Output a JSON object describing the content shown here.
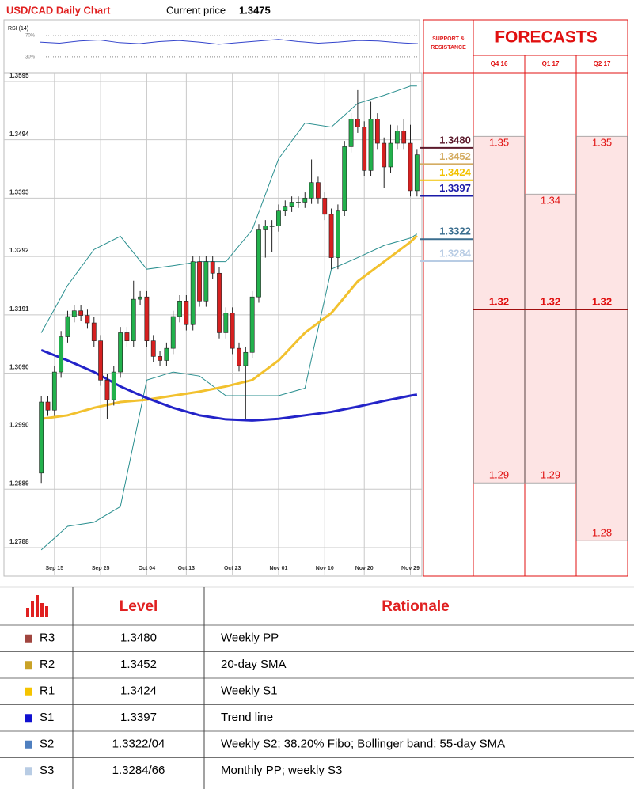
{
  "chart_data": {
    "type": "candlestick",
    "title": "USD/CAD Daily Chart",
    "price_label": "Current price",
    "price": 1.3475,
    "categories": [
      null,
      null,
      "Sep 15",
      null,
      null,
      null,
      null,
      null,
      null,
      "Sep 25",
      null,
      null,
      null,
      null,
      null,
      null,
      "Oct 04",
      null,
      null,
      null,
      null,
      null,
      "Oct 13",
      null,
      null,
      null,
      null,
      null,
      null,
      "Oct 23",
      null,
      null,
      null,
      null,
      null,
      null,
      "Nov 01",
      null,
      null,
      null,
      null,
      null,
      null,
      "Nov 10",
      null,
      null,
      null,
      null,
      null,
      "Nov 20",
      null,
      null,
      null,
      null,
      null,
      null,
      "Nov 29",
      null
    ],
    "open": [
      1.2917,
      1.304,
      1.3026,
      1.3092,
      1.3153,
      1.3188,
      1.3198,
      1.319,
      1.3177,
      1.3146,
      1.3078,
      1.3044,
      1.3092,
      1.316,
      1.3146,
      1.3218,
      1.3222,
      1.3146,
      1.3119,
      1.3112,
      1.3133,
      1.3188,
      1.3215,
      1.3174,
      1.3283,
      1.3215,
      1.3283,
      1.3263,
      1.316,
      1.3194,
      1.3133,
      1.3103,
      1.3126,
      1.3222,
      1.3338,
      1.3345,
      1.3345,
      1.3372,
      1.3379,
      1.3386,
      1.3386,
      1.3393,
      1.342,
      1.3393,
      1.3365,
      1.329,
      1.3372,
      1.3482,
      1.353,
      1.3516,
      1.3441,
      1.353,
      1.3488,
      1.3447,
      1.3488,
      1.3509,
      1.3488,
      1.3406
    ],
    "high": [
      1.305,
      1.305,
      1.3102,
      1.3163,
      1.3198,
      1.3208,
      1.3208,
      1.32,
      1.3187,
      1.3156,
      1.3088,
      1.3102,
      1.317,
      1.317,
      1.325,
      1.3232,
      1.3232,
      1.3156,
      1.3129,
      1.3143,
      1.3198,
      1.3225,
      1.3225,
      1.3293,
      1.3293,
      1.3293,
      1.3293,
      1.3273,
      1.3204,
      1.3204,
      1.3143,
      1.3136,
      1.3232,
      1.3348,
      1.3355,
      1.3355,
      1.3382,
      1.3389,
      1.3396,
      1.3396,
      1.3403,
      1.346,
      1.343,
      1.3403,
      1.3375,
      1.3382,
      1.3492,
      1.354,
      1.358,
      1.3526,
      1.356,
      1.354,
      1.3498,
      1.352,
      1.3519,
      1.353,
      1.352,
      1.3478
    ],
    "low": [
      1.29,
      1.3016,
      1.3016,
      1.3082,
      1.3143,
      1.3178,
      1.318,
      1.3167,
      1.3136,
      1.3068,
      1.301,
      1.3034,
      1.3082,
      1.3136,
      1.3136,
      1.3208,
      1.3136,
      1.3109,
      1.3102,
      1.3102,
      1.3123,
      1.3178,
      1.3164,
      1.3164,
      1.3205,
      1.3205,
      1.3253,
      1.315,
      1.315,
      1.3123,
      1.3093,
      1.301,
      1.3116,
      1.3212,
      1.329,
      1.33,
      1.3335,
      1.3362,
      1.3369,
      1.3376,
      1.3376,
      1.3383,
      1.3383,
      1.3355,
      1.327,
      1.327,
      1.3362,
      1.3472,
      1.3506,
      1.3431,
      1.3431,
      1.3478,
      1.341,
      1.3437,
      1.3478,
      1.3478,
      1.3396,
      1.3396
    ],
    "close": [
      1.304,
      1.3026,
      1.3092,
      1.3153,
      1.3188,
      1.3198,
      1.319,
      1.3177,
      1.3146,
      1.3078,
      1.3044,
      1.3092,
      1.316,
      1.3146,
      1.3218,
      1.3222,
      1.3146,
      1.3119,
      1.3112,
      1.3133,
      1.3188,
      1.3215,
      1.3174,
      1.3283,
      1.3215,
      1.3283,
      1.3263,
      1.316,
      1.3194,
      1.3133,
      1.3103,
      1.3126,
      1.3222,
      1.3338,
      1.3345,
      1.3345,
      1.3372,
      1.3379,
      1.3386,
      1.3386,
      1.3393,
      1.342,
      1.3393,
      1.3365,
      1.329,
      1.3372,
      1.3482,
      1.353,
      1.3516,
      1.3441,
      1.353,
      1.3488,
      1.3447,
      1.3488,
      1.3509,
      1.3488,
      1.3406,
      1.3468
    ],
    "up_color": "#22b14c",
    "down_color": "#d62020",
    "overlays": [
      {
        "color": "#2a8f8f",
        "x": [
          0,
          4,
          8,
          12,
          16,
          20,
          24,
          28,
          32,
          36,
          40,
          44,
          48,
          52,
          56,
          57
        ],
        "values": [
          1.316,
          1.3242,
          1.3304,
          1.3327,
          1.327,
          1.3276,
          1.3283,
          1.3283,
          1.3338,
          1.3461,
          1.3523,
          1.3516,
          1.3557,
          1.3571,
          1.3587,
          1.3587
        ]
      },
      {
        "color": "#2a8f8f",
        "x": [
          0,
          4,
          8,
          12,
          16,
          20,
          24,
          28,
          32,
          36,
          40,
          44,
          48,
          52,
          56,
          57
        ],
        "values": [
          1.2784,
          1.2825,
          1.2832,
          1.2859,
          1.3078,
          1.3092,
          1.3085,
          1.3051,
          1.3051,
          1.3051,
          1.3064,
          1.327,
          1.329,
          1.3311,
          1.3324,
          1.3331
        ]
      },
      {
        "color": "#f2c12e",
        "x": [
          0,
          4,
          8,
          12,
          16,
          20,
          24,
          28,
          32,
          36,
          40,
          44,
          48,
          52,
          56,
          57
        ],
        "values": [
          1.3011,
          1.3017,
          1.303,
          1.304,
          1.3044,
          1.3051,
          1.3058,
          1.3067,
          1.3078,
          1.3112,
          1.316,
          1.3194,
          1.3249,
          1.3283,
          1.3317,
          1.3328
        ]
      },
      {
        "color": "#2323c8",
        "x": [
          0,
          4,
          8,
          12,
          16,
          20,
          24,
          28,
          32,
          36,
          40,
          44,
          48,
          52,
          56,
          57
        ],
        "values": [
          1.313,
          1.3112,
          1.3092,
          1.3067,
          1.3047,
          1.303,
          1.3017,
          1.301,
          1.3008,
          1.3011,
          1.3017,
          1.3023,
          1.3032,
          1.3042,
          1.3051,
          1.3053
        ]
      }
    ],
    "ylim": [
      1.274,
      1.361
    ],
    "yticks": [
      1.2788,
      1.2889,
      {
        "value": 1.299,
        "label": "1.2990"
      },
      {
        "value": 1.309,
        "label": "1.3090"
      },
      1.3191,
      1.3292,
      1.3393,
      1.3494,
      1.3595
    ],
    "grid": true,
    "levels": [
      {
        "value": 1.348,
        "label": "1.3480",
        "color": "#5b1a2b"
      },
      {
        "value": 1.3452,
        "color": "#d4ac62"
      },
      {
        "value": 1.3424,
        "color": "#f2c200"
      },
      {
        "value": 1.3397,
        "color": "#1a1aa8"
      },
      {
        "value": 1.3322,
        "color": "#3b6e8f"
      },
      {
        "value": 1.3284,
        "color": "#b8cce4"
      }
    ],
    "rsi": {
      "label": "RSI (14)",
      "color": "#3344cc",
      "ylim": [
        0,
        100
      ],
      "yticks": [
        {
          "value": 70,
          "label": "70%"
        },
        {
          "value": 30,
          "label": "30%"
        }
      ],
      "values": [
        58,
        56,
        60,
        62,
        57,
        55,
        59,
        61,
        58,
        54,
        57,
        60,
        63,
        59,
        56,
        58,
        61,
        60,
        57,
        55
      ]
    }
  },
  "forecasts": {
    "title": "FORECASTS",
    "levels_header": "SUPPORT & RESISTANCE",
    "fill": "#fde4e4",
    "line_color": "#e01010",
    "columns": [
      {
        "name": "Q4 16",
        "high": 1.35,
        "mid": 1.32,
        "low": 1.29
      },
      {
        "name": "Q1 17",
        "high": 1.34,
        "mid": 1.32,
        "low": 1.29
      },
      {
        "name": "Q2 17",
        "high": 1.35,
        "mid": 1.32,
        "low": 1.28
      }
    ]
  },
  "table": {
    "columns": [
      "Level",
      "Rationale"
    ],
    "rows": [
      {
        "code": "R3",
        "level": "1.3480",
        "rationale": "Weekly PP",
        "color": "#a0453f"
      },
      {
        "code": "R2",
        "level": "1.3452",
        "rationale": "20-day SMA",
        "color": "#c9a227"
      },
      {
        "code": "R1",
        "level": "1.3424",
        "rationale": "Weekly S1",
        "color": "#f5c400"
      },
      {
        "code": "S1",
        "level": "1.3397",
        "rationale": "Trend line",
        "color": "#1010d0"
      },
      {
        "code": "S2",
        "level": "1.3322/04",
        "rationale": "Weekly S2; 38.20% Fibo; Bollinger band; 55-day SMA",
        "color": "#4f7fbf"
      },
      {
        "code": "S3",
        "level": "1.3284/66",
        "rationale": "Monthly PP; weekly S3",
        "color": "#b8cce4"
      }
    ]
  }
}
